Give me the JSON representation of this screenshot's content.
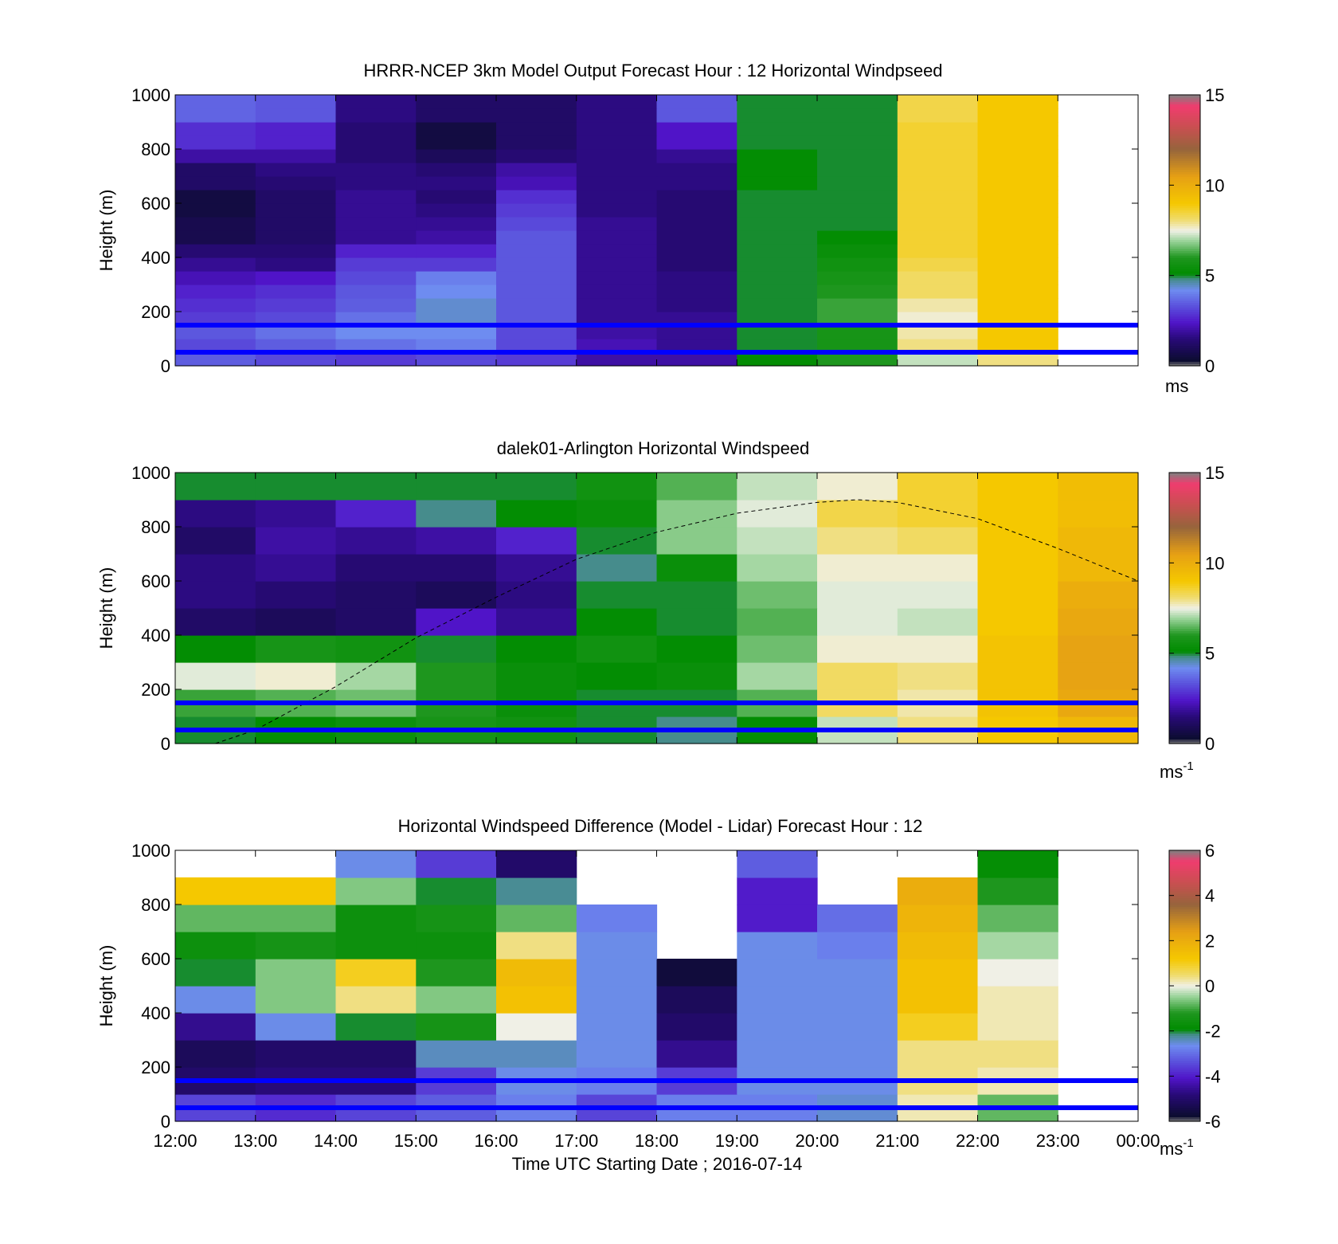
{
  "figure": {
    "xlabel": "Time UTC  Starting Date ; 2016-07-14",
    "xticks": [
      "12:00",
      "13:00",
      "14:00",
      "15:00",
      "16:00",
      "17:00",
      "18:00",
      "19:00",
      "20:00",
      "21:00",
      "22:00",
      "23:00",
      "00:00"
    ],
    "reference_lines_m": [
      150,
      50
    ],
    "reference_line_color": "#0000ff"
  },
  "chart_data": [
    {
      "type": "heatmap",
      "title": "HRRR-NCEP 3km Model Output   Forecast Hour : 12 Horizontal Windpseed",
      "ylabel": "Height (m)",
      "ylim": [
        0,
        1000
      ],
      "yticks": [
        "0",
        "200",
        "400",
        "600",
        "800",
        "1000"
      ],
      "colorbar": {
        "min": 0,
        "max": 15,
        "ticks": [
          "0",
          "5",
          "10",
          "15"
        ],
        "unit": "ms"
      },
      "x_hours": [
        12,
        13,
        14,
        15,
        16,
        17,
        18,
        19,
        20,
        21,
        22
      ],
      "heights_m": [
        25,
        75,
        125,
        175,
        225,
        275,
        325,
        375,
        425,
        475,
        525,
        575,
        625,
        675,
        725,
        775,
        825,
        875,
        925,
        975
      ],
      "speed_ms": [
        [
          3.5,
          3.2,
          3.0,
          3.2,
          3.0,
          2.0,
          2.0,
          5.2,
          6.0,
          7.2,
          8.0
        ],
        [
          3.2,
          3.5,
          3.8,
          4.0,
          3.2,
          2.2,
          1.8,
          5.0,
          5.8,
          8.0,
          9.0
        ],
        [
          3.4,
          3.8,
          4.2,
          4.2,
          3.2,
          2.0,
          1.8,
          5.0,
          5.8,
          7.8,
          9.0
        ],
        [
          3.0,
          3.2,
          3.8,
          4.4,
          3.4,
          1.8,
          1.8,
          5.0,
          6.2,
          7.6,
          9.0
        ],
        [
          2.8,
          3.0,
          3.5,
          4.4,
          3.4,
          1.8,
          1.6,
          5.0,
          6.2,
          7.8,
          9.0
        ],
        [
          2.6,
          2.8,
          3.4,
          4.2,
          3.4,
          1.8,
          1.6,
          5.0,
          6.0,
          8.2,
          9.0
        ],
        [
          2.2,
          2.4,
          3.2,
          4.0,
          3.4,
          1.8,
          1.6,
          5.0,
          5.8,
          8.2,
          9.0
        ],
        [
          1.8,
          1.6,
          3.0,
          3.0,
          3.4,
          1.8,
          1.4,
          5.0,
          5.6,
          8.4,
          9.0
        ],
        [
          1.4,
          1.4,
          2.6,
          2.6,
          3.4,
          1.8,
          1.4,
          5.0,
          5.4,
          8.6,
          9.0
        ],
        [
          0.8,
          1.2,
          1.8,
          2.0,
          3.4,
          1.8,
          1.4,
          5.0,
          5.2,
          8.6,
          9.0
        ],
        [
          0.8,
          1.2,
          1.8,
          1.8,
          3.2,
          1.8,
          1.4,
          5.0,
          5.0,
          8.6,
          9.0
        ],
        [
          0.6,
          1.2,
          1.8,
          1.6,
          3.0,
          1.6,
          1.4,
          5.0,
          5.0,
          8.6,
          9.0
        ],
        [
          0.6,
          1.2,
          1.8,
          1.4,
          2.8,
          1.6,
          1.4,
          5.0,
          5.0,
          8.6,
          9.0
        ],
        [
          1.2,
          1.4,
          1.6,
          1.6,
          2.2,
          1.6,
          1.6,
          5.2,
          5.0,
          8.6,
          9.0
        ],
        [
          1.2,
          1.6,
          1.6,
          1.4,
          2.0,
          1.6,
          1.6,
          5.2,
          5.0,
          8.6,
          9.0
        ],
        [
          2.0,
          2.0,
          1.4,
          1.0,
          1.4,
          1.6,
          1.8,
          5.2,
          5.0,
          8.6,
          9.0
        ],
        [
          2.8,
          2.6,
          1.4,
          0.6,
          1.2,
          1.6,
          2.4,
          5.0,
          5.0,
          8.6,
          9.0
        ],
        [
          2.8,
          2.6,
          1.4,
          0.6,
          1.2,
          1.6,
          2.4,
          5.0,
          5.0,
          8.6,
          9.0
        ],
        [
          3.6,
          3.4,
          1.6,
          1.2,
          1.2,
          1.6,
          3.4,
          5.0,
          5.0,
          8.4,
          9.0
        ],
        [
          3.6,
          3.4,
          1.6,
          1.2,
          1.2,
          1.6,
          3.4,
          5.0,
          5.0,
          8.4,
          9.0
        ]
      ]
    },
    {
      "type": "heatmap",
      "title": "dalek01-Arlington  Horizontal Windspeed",
      "ylabel": "Height (m)",
      "ylim": [
        0,
        1000
      ],
      "yticks": [
        "0",
        "200",
        "400",
        "600",
        "800",
        "1000"
      ],
      "colorbar": {
        "min": 0,
        "max": 15,
        "ticks": [
          "0",
          "5",
          "10",
          "15"
        ],
        "unit": "ms",
        "unit_exponent": "-1"
      },
      "x_hours": [
        12,
        13,
        14,
        15,
        16,
        17,
        18,
        19,
        20,
        21,
        22,
        23
      ],
      "heights_m": [
        50,
        150,
        250,
        350,
        450,
        550,
        650,
        750,
        850,
        950
      ],
      "speed_ms": [
        [
          5.0,
          5.2,
          5.5,
          5.8,
          5.6,
          5.0,
          4.8,
          5.2,
          7.2,
          8.0,
          9.0,
          9.6
        ],
        [
          6.2,
          6.4,
          6.6,
          6.0,
          5.4,
          5.0,
          5.0,
          6.4,
          8.2,
          7.8,
          9.2,
          10.2
        ],
        [
          7.4,
          7.6,
          7.0,
          6.0,
          5.4,
          5.2,
          5.4,
          7.0,
          8.2,
          8.0,
          9.2,
          10.4
        ],
        [
          5.2,
          5.8,
          5.6,
          5.0,
          5.2,
          5.6,
          5.2,
          6.6,
          7.6,
          7.6,
          9.2,
          10.4
        ],
        [
          1.2,
          1.0,
          1.2,
          2.4,
          1.8,
          5.2,
          5.0,
          6.4,
          7.4,
          7.2,
          9.0,
          10.2
        ],
        [
          1.6,
          1.4,
          1.2,
          1.0,
          1.6,
          5.0,
          5.0,
          6.6,
          7.4,
          7.4,
          9.0,
          10.0
        ],
        [
          1.6,
          1.8,
          1.4,
          1.4,
          1.8,
          4.8,
          5.4,
          7.0,
          7.6,
          7.6,
          9.0,
          9.6
        ],
        [
          1.2,
          2.0,
          1.8,
          2.0,
          2.6,
          5.0,
          6.8,
          7.2,
          8.0,
          8.2,
          9.0,
          9.6
        ],
        [
          1.6,
          1.8,
          2.6,
          4.8,
          5.2,
          5.4,
          6.8,
          7.4,
          8.4,
          8.6,
          9.0,
          9.4
        ],
        [
          5.0,
          5.0,
          5.0,
          5.0,
          5.0,
          5.6,
          6.4,
          7.2,
          7.6,
          8.6,
          9.0,
          9.4
        ]
      ],
      "dashed_curve": {
        "x_hours": [
          12.5,
          13,
          14,
          15,
          16,
          17,
          18,
          19,
          20,
          20.5,
          21,
          22,
          23,
          24
        ],
        "height_m": [
          0,
          50,
          210,
          390,
          540,
          680,
          780,
          850,
          890,
          900,
          890,
          830,
          720,
          600
        ]
      }
    },
    {
      "type": "heatmap",
      "title": "Horizontal Windspeed Difference (Model - Lidar) Forecast Hour : 12",
      "ylabel": "Height (m)",
      "ylim": [
        0,
        1000
      ],
      "yticks": [
        "0",
        "200",
        "400",
        "600",
        "800",
        "1000"
      ],
      "colorbar": {
        "min": -6,
        "max": 6,
        "ticks": [
          "-6",
          "-4",
          "-2",
          "0",
          "2",
          "4",
          "6"
        ],
        "unit": "ms",
        "unit_exponent": "-1"
      },
      "x_hours": [
        12,
        13,
        14,
        15,
        16,
        17,
        18,
        19,
        20,
        21,
        22
      ],
      "heights_m": [
        50,
        150,
        250,
        350,
        450,
        550,
        650,
        750,
        850,
        950
      ],
      "diff_ms": [
        [
          -3.5,
          -3.8,
          -3.5,
          -3.2,
          -2.8,
          -3.5,
          -2.8,
          -2.8,
          -2.5,
          0.2,
          -0.8
        ],
        [
          -5.0,
          -4.8,
          -4.8,
          -3.6,
          -2.6,
          -2.8,
          -3.6,
          -2.6,
          -2.6,
          0.4,
          0.2
        ],
        [
          -5.2,
          -5.0,
          -5.0,
          -2.4,
          -2.4,
          -2.6,
          -4.6,
          -2.6,
          -2.6,
          0.4,
          0.4
        ],
        [
          -4.6,
          -2.6,
          -2.0,
          -1.4,
          0.0,
          -2.6,
          -5.0,
          -2.6,
          -2.6,
          1.0,
          0.2
        ],
        [
          -2.6,
          -0.6,
          0.4,
          -0.6,
          1.4,
          -2.6,
          -5.2,
          -2.6,
          -2.6,
          1.4,
          0.2
        ],
        [
          -2.0,
          -0.6,
          1.0,
          -1.2,
          1.6,
          -2.6,
          -5.6,
          -2.6,
          -2.6,
          1.4,
          0.0
        ],
        [
          -1.6,
          -1.4,
          -1.6,
          -1.6,
          0.4,
          -2.6,
          null,
          -2.6,
          -2.8,
          1.6,
          -0.4
        ],
        [
          -0.8,
          -0.8,
          -1.6,
          -1.4,
          -0.8,
          -2.8,
          null,
          -4.0,
          -3.0,
          1.8,
          -0.8
        ],
        [
          1.2,
          1.2,
          -0.6,
          -2.0,
          -2.2,
          null,
          null,
          -4.0,
          null,
          2.0,
          -1.2
        ],
        [
          null,
          null,
          -2.6,
          -3.6,
          -5.0,
          null,
          null,
          -3.2,
          null,
          null,
          -1.8
        ]
      ]
    }
  ]
}
